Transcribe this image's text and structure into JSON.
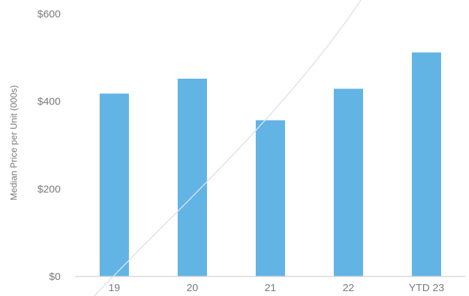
{
  "chart_data": {
    "type": "bar",
    "title": "",
    "xlabel": "",
    "ylabel": "Median Price per Unit (000s)",
    "categories": [
      "19",
      "20",
      "21",
      "22",
      "YTD 23"
    ],
    "series": [
      {
        "values": [
          418,
          452,
          357,
          429,
          512
        ]
      }
    ],
    "ylim": [
      0,
      600
    ],
    "yticks": [
      "$0",
      "$200",
      "$400",
      "$600"
    ],
    "grid": false,
    "legend": "none",
    "colors": {
      "bar": "#62B4E5",
      "axis": "#d9d9d9",
      "trend_line": "#dde2ec"
    }
  }
}
